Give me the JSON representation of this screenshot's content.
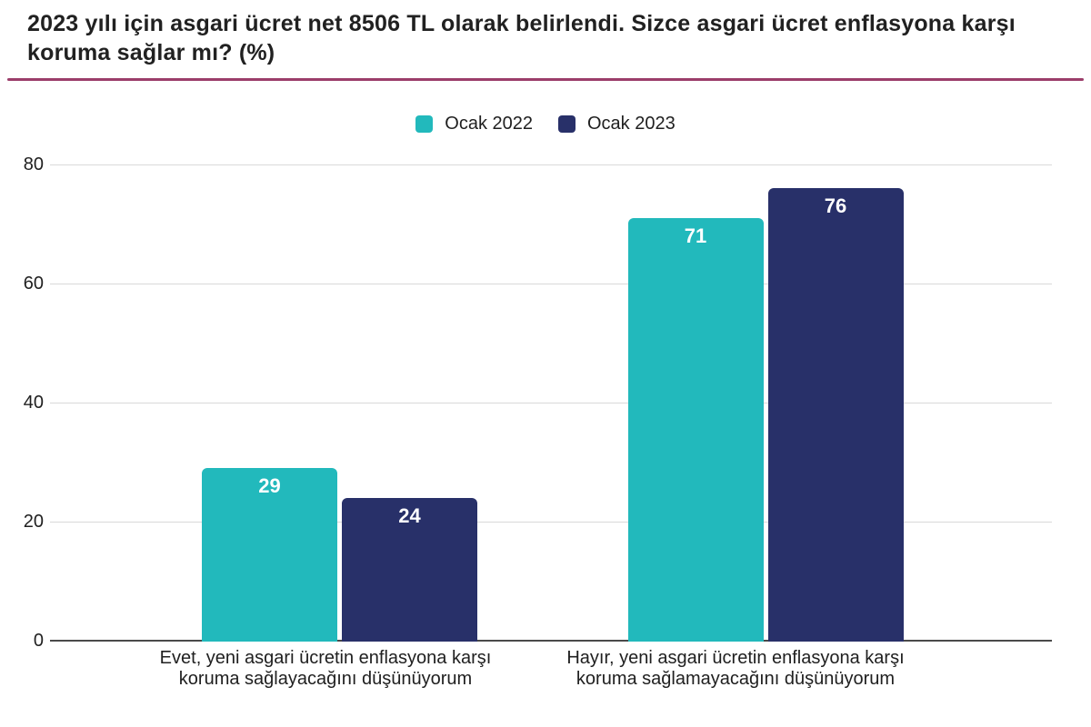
{
  "page": {
    "title": "2023 yılı için asgari ücret net 8506 TL olarak belirlendi. Sizce asgari ücret enflasyona karşı koruma sağlar mı? (%)",
    "title_lines": [
      "2023 yılı için asgari ücret net 8506 TL olarak belirlendi. Sizce asgari ücret enflasyona karşı",
      "koruma sağlar mı? (%)"
    ],
    "divider_color": "#9B3D6A",
    "background_color": "#FFFFFF"
  },
  "legend": {
    "items": [
      {
        "label": "Ocak 2022",
        "color": "#22B9BC"
      },
      {
        "label": "Ocak 2023",
        "color": "#283069"
      }
    ]
  },
  "chart_data": {
    "type": "bar",
    "title": "2023 yılı için asgari ücret net 8506 TL olarak belirlendi. Sizce asgari ücret enflasyona karşı koruma sağlar mı? (%)",
    "categories": [
      "Evet, yeni asgari ücretin enflasyona karşı koruma sağlayacağını düşünüyorum",
      "Hayır, yeni asgari ücretin enflasyona karşı koruma sağlamayacağını düşünüyorum"
    ],
    "category_lines": [
      [
        "Evet, yeni asgari ücretin enflasyona karşı",
        "koruma sağlayacağını düşünüyorum"
      ],
      [
        "Hayır, yeni asgari ücretin enflasyona karşı",
        "koruma sağlamayacağını düşünüyorum"
      ]
    ],
    "series": [
      {
        "name": "Ocak 2022",
        "color": "#22B9BC",
        "values": [
          29,
          71
        ]
      },
      {
        "name": "Ocak 2023",
        "color": "#283069",
        "values": [
          24,
          76
        ]
      }
    ],
    "xlabel": "",
    "ylabel": "",
    "ylim": [
      0,
      80
    ],
    "yticks": [
      0,
      20,
      40,
      60,
      80
    ],
    "grid": true,
    "legend_position": "top",
    "value_labels": "inside-top",
    "value_label_color": "#FFFFFF",
    "gridline_color": "#D9D9D9",
    "baseline_color": "#4A4A4A",
    "text_color": "#202020"
  }
}
